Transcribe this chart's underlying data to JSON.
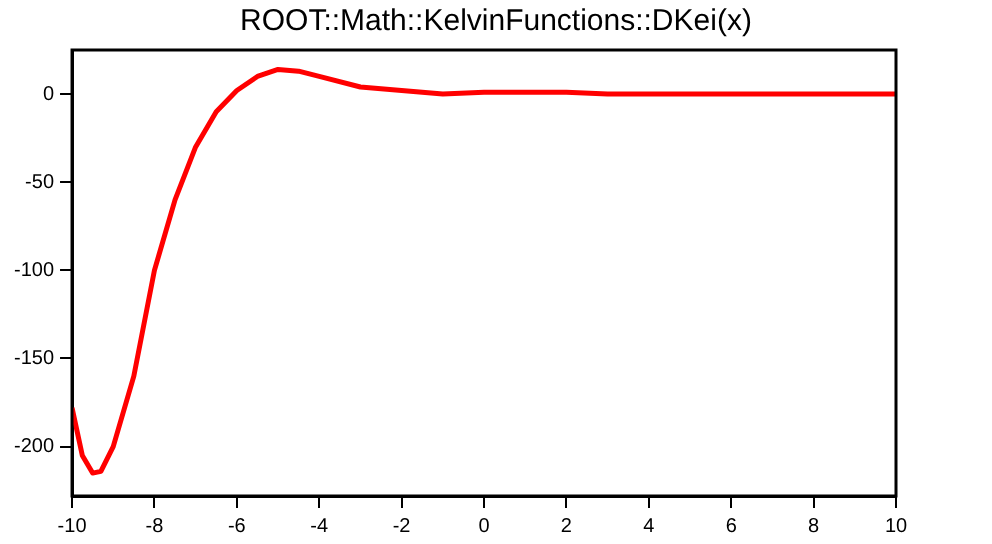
{
  "chart_data": {
    "type": "line",
    "title": "ROOT::Math::KelvinFunctions::DKei(x)",
    "x": [
      -10,
      -9.75,
      -9.5,
      -9.3,
      -9,
      -8.5,
      -8,
      -7.5,
      -7,
      -6.5,
      -6,
      -5.5,
      -5,
      -4.5,
      -4,
      -3,
      -2,
      -1,
      0,
      1,
      2,
      3,
      10
    ],
    "series": [
      {
        "color": "#ff0000",
        "values": [
          -178,
          -205,
          -215,
          -214,
          -200,
          -160,
          -100,
          -60,
          -30,
          -10,
          2,
          10,
          14,
          13,
          10,
          4,
          2,
          0,
          1,
          1,
          1,
          0,
          0
        ]
      }
    ],
    "xlim": [
      -10,
      10
    ],
    "xticks": [
      -10,
      -8,
      -6,
      -4,
      -2,
      0,
      2,
      4,
      6,
      8,
      10
    ],
    "ylim": [
      -228,
      25
    ],
    "yticks": [
      -200,
      -150,
      -100,
      -50,
      0
    ],
    "grid": false,
    "legend": false,
    "marker": "none",
    "line_style": "solid"
  }
}
